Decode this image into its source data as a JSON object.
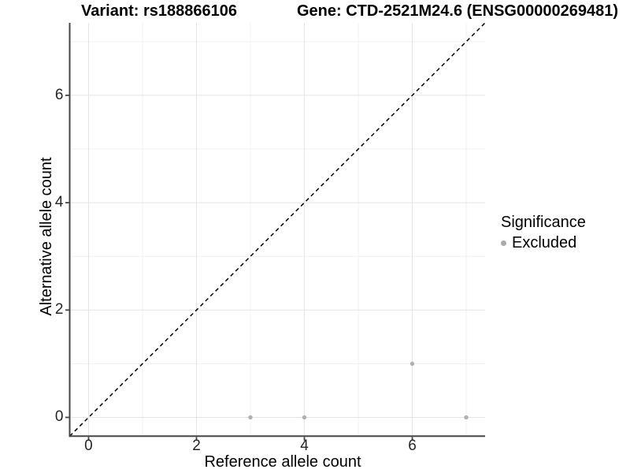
{
  "chart_data": {
    "type": "scatter",
    "titles": {
      "left": "Variant: rs188866106",
      "right": "Gene: CTD-2521M24.6 (ENSG00000269481)"
    },
    "xlabel": "Reference allele count",
    "ylabel": "Alternative allele count",
    "xlim": [
      -0.35,
      7.35
    ],
    "ylim": [
      -0.35,
      7.35
    ],
    "x_major_ticks": [
      0,
      2,
      4,
      6
    ],
    "y_major_ticks": [
      0,
      2,
      4,
      6
    ],
    "x_minor_gridlines": [
      1,
      3,
      5,
      7
    ],
    "y_minor_gridlines": [
      1,
      3,
      5,
      7
    ],
    "grid": "major and minor gridlines, white background",
    "identity_line": {
      "description": "dashed y = x reference line",
      "from": [
        -0.35,
        -0.35
      ],
      "to": [
        7.35,
        7.35
      ],
      "color": "#000000",
      "style": "dashed"
    },
    "series": [
      {
        "name": "Excluded",
        "color": "#b0b0b0",
        "points": [
          {
            "x": 3,
            "y": 0
          },
          {
            "x": 4,
            "y": 0
          },
          {
            "x": 6,
            "y": 1
          },
          {
            "x": 7,
            "y": 0
          }
        ]
      }
    ],
    "legend": {
      "title": "Significance",
      "position": "right",
      "entries": [
        {
          "label": "Excluded",
          "color": "#aaaaaa",
          "marker": "circle"
        }
      ]
    }
  },
  "colors": {
    "background": "#ffffff",
    "grid_major": "#e4e4e4",
    "grid_minor": "#f0f0f0",
    "axis_line": "#464646",
    "tick_mark": "#464646",
    "tick_label": "#262626",
    "point": "#b0b0b0",
    "identity_line": "#000000"
  }
}
